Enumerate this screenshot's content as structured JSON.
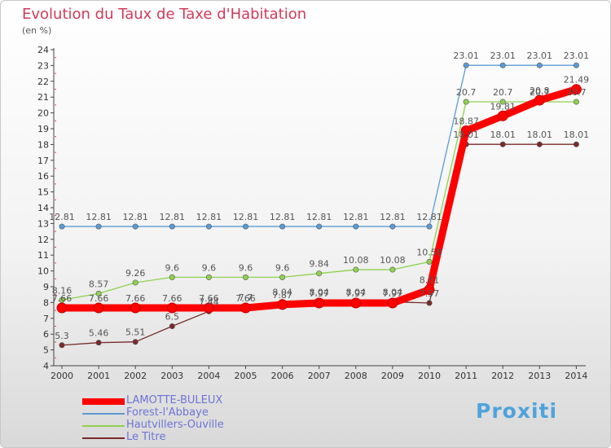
{
  "title": "Evolution du Taux de Taxe d'Habitation",
  "unit_label": "(en %)",
  "logo_text": "Proxiti",
  "chart_data": {
    "type": "line",
    "title": "Evolution du Taux de Taxe d'Habitation",
    "ylabel": "(en %)",
    "xlabel": "",
    "ylim": [
      4,
      24
    ],
    "grid": false,
    "legend_position": "bottom-left",
    "x": [
      2000,
      2001,
      2002,
      2003,
      2004,
      2005,
      2006,
      2007,
      2008,
      2009,
      2010,
      2011,
      2012,
      2013,
      2014
    ],
    "y_ticks": [
      4,
      5,
      6,
      7,
      8,
      9,
      10,
      11,
      12,
      13,
      14,
      15,
      16,
      17,
      18,
      19,
      20,
      21,
      22,
      23,
      24
    ],
    "series": [
      {
        "name": "LAMOTTE-BULEUX",
        "color": "#ff0000",
        "values": [
          7.66,
          7.66,
          7.66,
          7.66,
          7.66,
          7.66,
          7.87,
          7.97,
          7.97,
          7.97,
          8.81,
          18.87,
          19.81,
          20.8,
          21.49
        ],
        "labels": [
          "7.66",
          "7.66",
          "7.66",
          "7.66",
          "7.66",
          "7.66",
          "7.87",
          "7.97",
          "7.97",
          "7.97",
          "8.81",
          "18.87",
          "19.81",
          "20.8",
          "21.49"
        ]
      },
      {
        "name": "Forest-l'Abbaye",
        "color": "#5b9bd5",
        "values": [
          12.81,
          12.81,
          12.81,
          12.81,
          12.81,
          12.81,
          12.81,
          12.81,
          12.81,
          12.81,
          12.81,
          23.01,
          23.01,
          23.01,
          23.01
        ],
        "labels": [
          "12.81",
          "12.81",
          "12.81",
          "12.81",
          "12.81",
          "12.81",
          "12.81",
          "12.81",
          "12.81",
          "12.81",
          "12.81",
          "23.01",
          "23.01",
          "23.01",
          "23.01"
        ]
      },
      {
        "name": "Hautvillers-Ouville",
        "color": "#8fd14f",
        "values": [
          8.16,
          8.57,
          9.26,
          9.6,
          9.6,
          9.6,
          9.6,
          9.84,
          10.08,
          10.08,
          10.58,
          20.7,
          20.7,
          20.7,
          20.7
        ],
        "labels": [
          "8.16",
          "8.57",
          "9.26",
          "9.6",
          "9.6",
          "9.6",
          "9.6",
          "9.84",
          "10.08",
          "10.08",
          "10.58",
          "20.7",
          "20.7",
          "20.7",
          "20.7"
        ]
      },
      {
        "name": "Le Titre",
        "color": "#7a2b2b",
        "values": [
          5.3,
          5.46,
          5.51,
          6.5,
          7.44,
          7.7,
          8.04,
          8.04,
          8.04,
          8.04,
          7.97,
          18.01,
          18.01,
          18.01,
          18.01
        ],
        "labels": [
          "5.3",
          "5.46",
          "5.51",
          "6.5",
          "7.44",
          "7.7",
          "8.04",
          "8.04",
          "8.04",
          "8.04",
          "7.97",
          "18.01",
          "18.01",
          "18.01",
          "18.01"
        ]
      }
    ]
  }
}
